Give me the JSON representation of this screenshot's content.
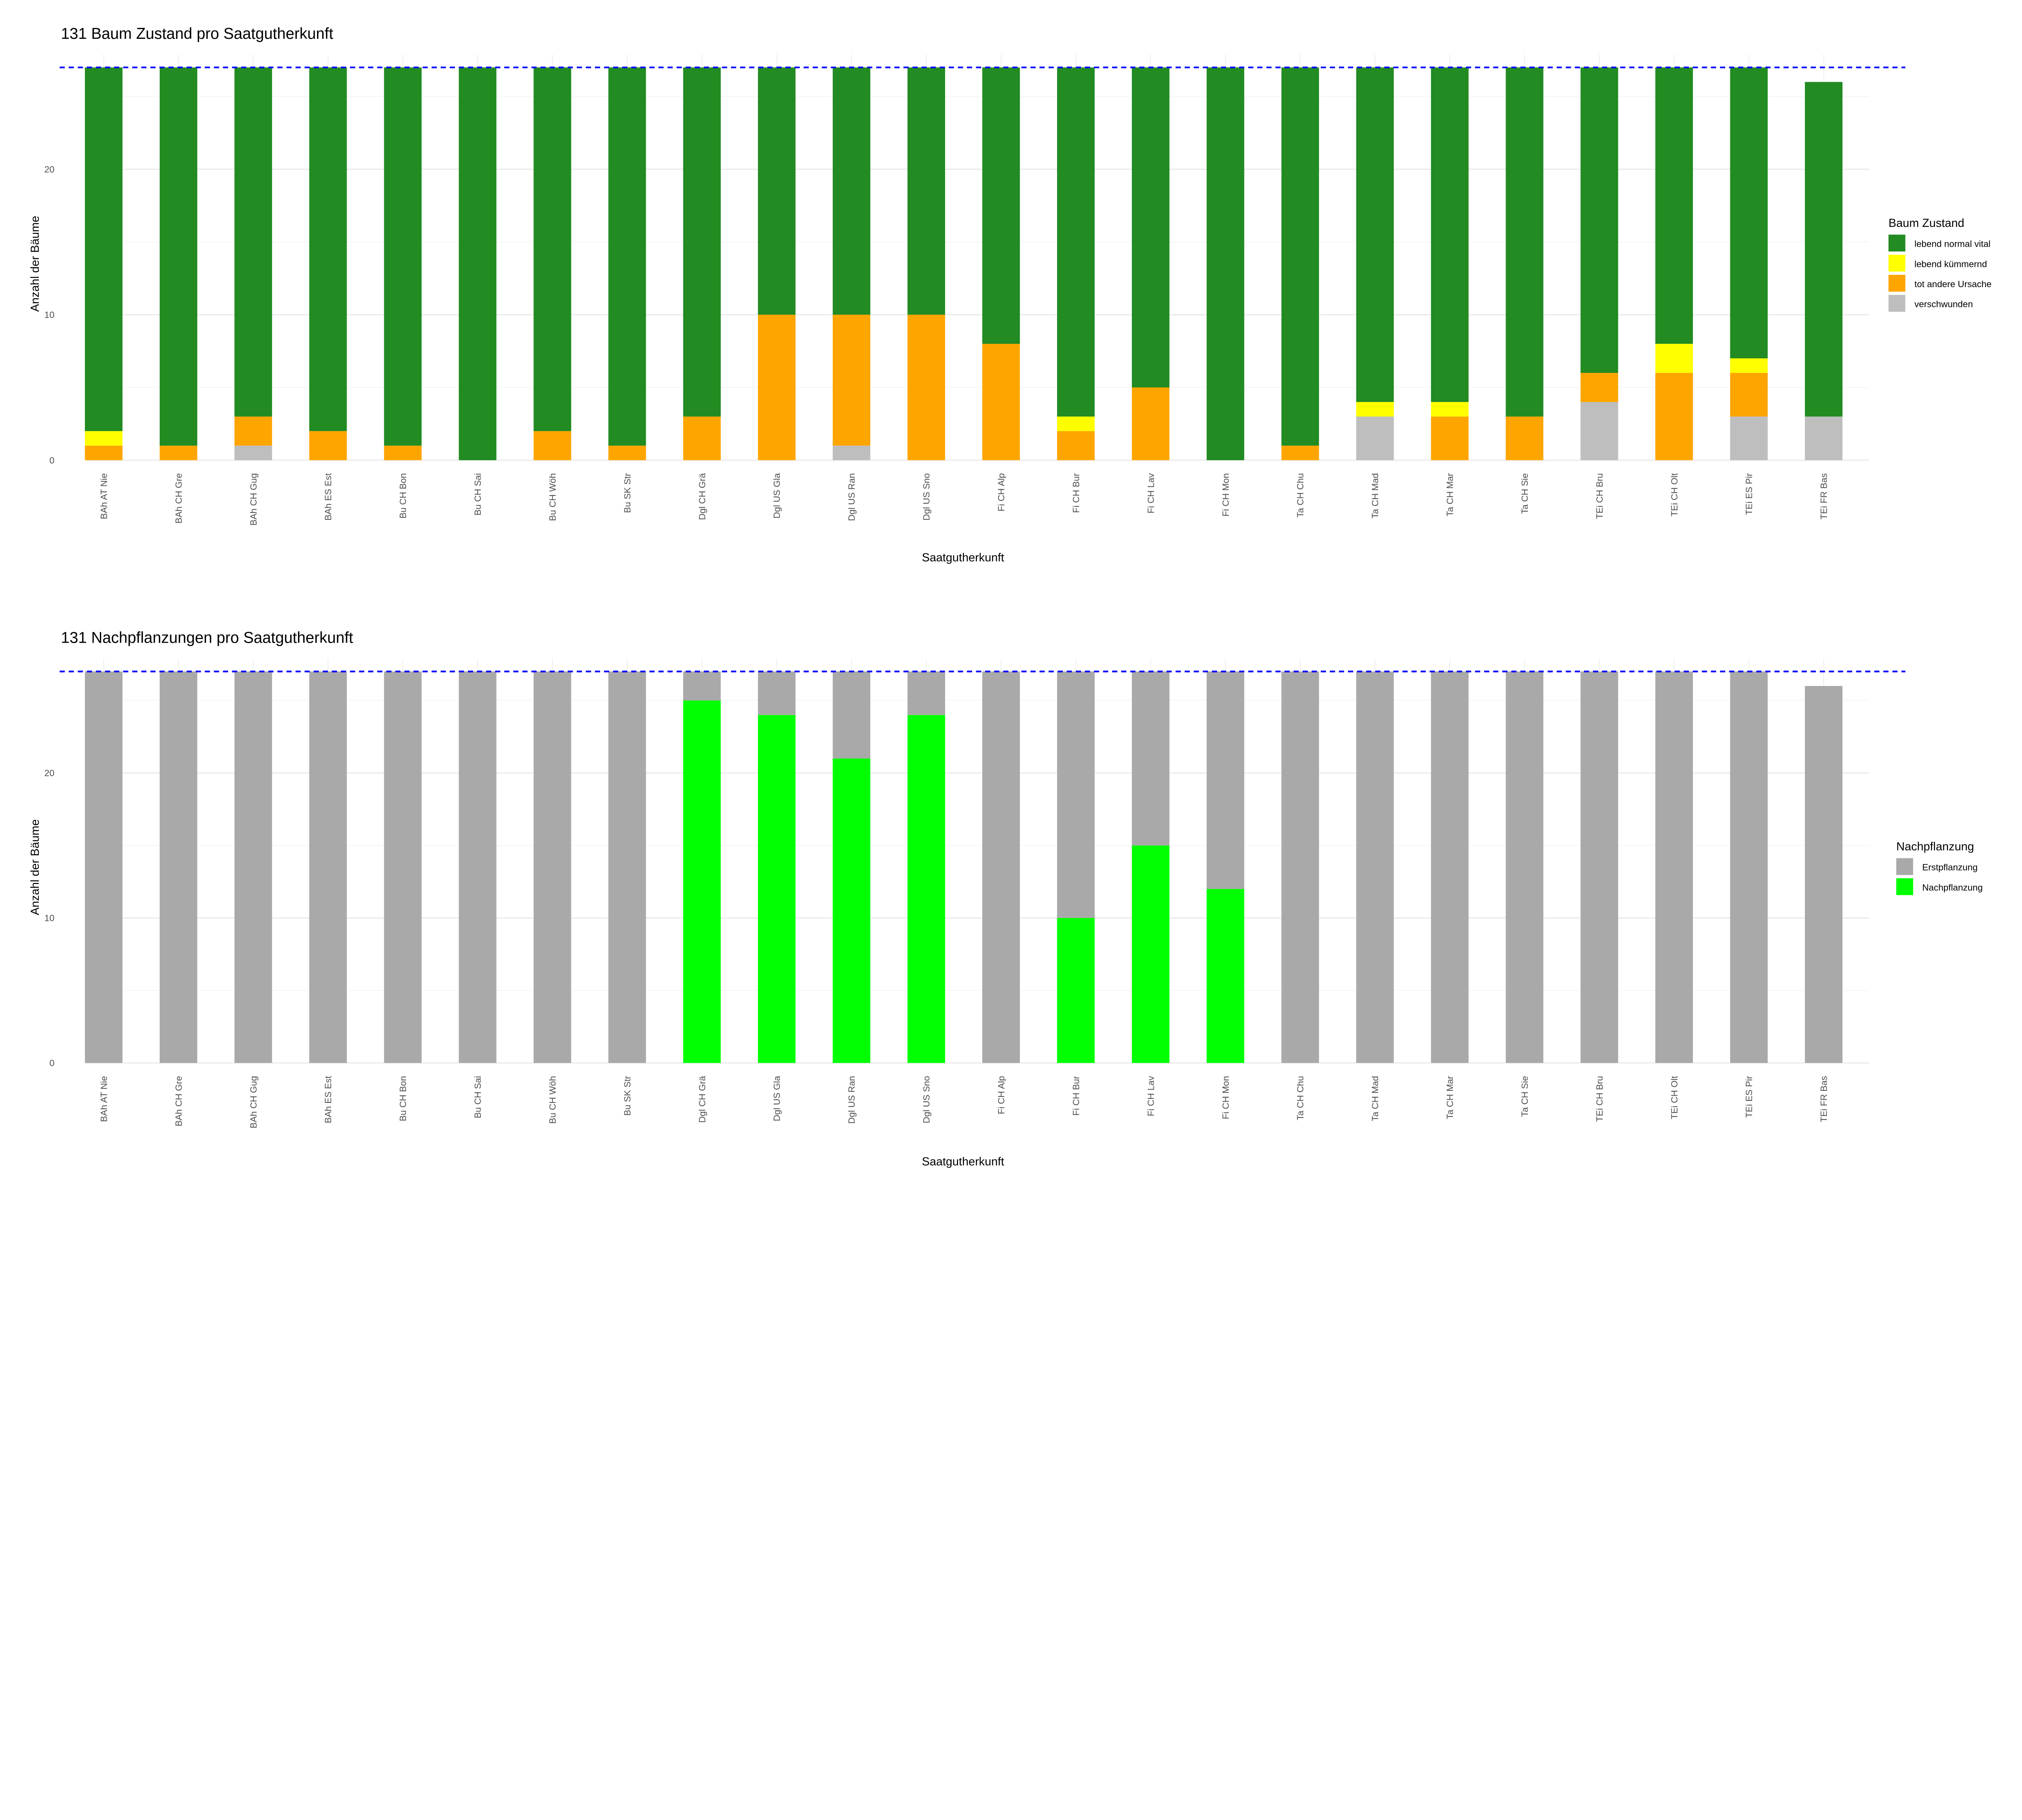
{
  "chart_data": [
    {
      "type": "bar",
      "stacked": true,
      "title": "131 Baum Zustand pro Saatgutherkunft",
      "xlabel": "Saatgutherkunft",
      "ylabel": "Anzahl der Bäume",
      "ylim": [
        0,
        27
      ],
      "yticks": [
        0,
        10,
        20
      ],
      "grid": true,
      "reference_line": {
        "value": 27,
        "color": "#0000FF",
        "style": "dashed"
      },
      "legend": {
        "title": "Baum Zustand",
        "position": "right"
      },
      "categories": [
        "BAh AT Nie",
        "BAh CH Gre",
        "BAh CH Gug",
        "BAh ES Est",
        "Bu CH Bon",
        "Bu CH Sai",
        "Bu CH Wöh",
        "Bu SK Str",
        "Dgl CH Grä",
        "Dgl US Gla",
        "Dgl US Ran",
        "Dgl US Sno",
        "Fi CH Alp",
        "Fi CH Bur",
        "Fi CH Lav",
        "Fi CH Mon",
        "Ta CH Chu",
        "Ta CH Mad",
        "Ta CH Mar",
        "Ta CH Sie",
        "TEi CH Bru",
        "TEi CH Olt",
        "TEi ES Pir",
        "TEi FR Bas"
      ],
      "series": [
        {
          "name": "verschwunden",
          "color": "#BEBEBE",
          "values": [
            0,
            0,
            1,
            0,
            0,
            0,
            0,
            0,
            0,
            0,
            1,
            0,
            0,
            0,
            0,
            0,
            0,
            3,
            0,
            0,
            4,
            0,
            3,
            3
          ]
        },
        {
          "name": "tot andere Ursache",
          "color": "#FFA500",
          "values": [
            1,
            1,
            2,
            2,
            1,
            0,
            2,
            1,
            3,
            10,
            9,
            10,
            8,
            2,
            5,
            0,
            1,
            0,
            3,
            3,
            2,
            6,
            3,
            0
          ]
        },
        {
          "name": "lebend kümmernd",
          "color": "#FFFF00",
          "values": [
            1,
            0,
            0,
            0,
            0,
            0,
            0,
            0,
            0,
            0,
            0,
            0,
            0,
            1,
            0,
            0,
            0,
            1,
            1,
            0,
            0,
            2,
            1,
            0
          ]
        },
        {
          "name": "lebend normal vital",
          "color": "#228B22",
          "values": [
            25,
            26,
            24,
            25,
            26,
            27,
            25,
            26,
            24,
            17,
            17,
            17,
            19,
            24,
            22,
            27,
            26,
            23,
            23,
            24,
            21,
            19,
            20,
            23
          ]
        }
      ],
      "legend_order": [
        "lebend normal vital",
        "lebend kümmernd",
        "tot andere Ursache",
        "verschwunden"
      ]
    },
    {
      "type": "bar",
      "stacked": true,
      "title": "131 Nachpflanzungen pro Saatgutherkunft",
      "xlabel": "Saatgutherkunft",
      "ylabel": "Anzahl der Bäume",
      "ylim": [
        0,
        27
      ],
      "yticks": [
        0,
        10,
        20
      ],
      "grid": true,
      "reference_line": {
        "value": 27,
        "color": "#0000FF",
        "style": "dashed"
      },
      "legend": {
        "title": "Nachpflanzung",
        "position": "right"
      },
      "categories": [
        "BAh AT Nie",
        "BAh CH Gre",
        "BAh CH Gug",
        "BAh ES Est",
        "Bu CH Bon",
        "Bu CH Sai",
        "Bu CH Wöh",
        "Bu SK Str",
        "Dgl CH Grä",
        "Dgl US Gla",
        "Dgl US Ran",
        "Dgl US Sno",
        "Fi CH Alp",
        "Fi CH Bur",
        "Fi CH Lav",
        "Fi CH Mon",
        "Ta CH Chu",
        "Ta CH Mad",
        "Ta CH Mar",
        "Ta CH Sie",
        "TEi CH Bru",
        "TEi CH Olt",
        "TEi ES Pir",
        "TEi FR Bas"
      ],
      "series": [
        {
          "name": "Nachpflanzung",
          "color": "#00FF00",
          "values": [
            0,
            0,
            0,
            0,
            0,
            0,
            0,
            0,
            25,
            24,
            21,
            24,
            0,
            10,
            15,
            12,
            0,
            0,
            0,
            0,
            0,
            0,
            0,
            0
          ]
        },
        {
          "name": "Erstpflanzung",
          "color": "#A9A9A9",
          "values": [
            27,
            27,
            27,
            27,
            27,
            27,
            27,
            27,
            2,
            3,
            6,
            3,
            27,
            17,
            12,
            15,
            27,
            27,
            27,
            27,
            27,
            27,
            27,
            26
          ]
        }
      ],
      "legend_order": [
        "Erstpflanzung",
        "Nachpflanzung"
      ]
    }
  ]
}
